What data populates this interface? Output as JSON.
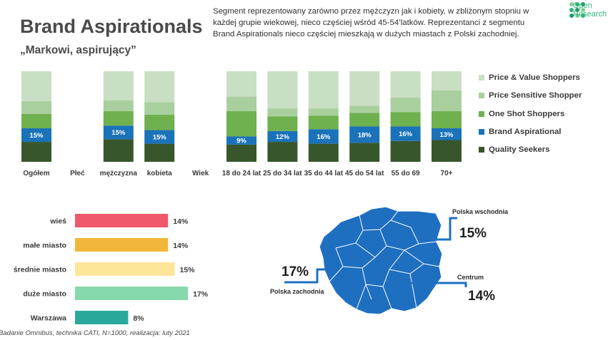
{
  "header": {
    "title": "Brand Aspirationals",
    "subtitle": "„Markowi, aspirujący”",
    "description": "Segment reprezentowany zarówno przez mężczyzn jak i kobiety, w zbliżonym stopniu w każdej grupie wiekowej, nieco częściej wśród 45-54’latków. Reprezentanci z segmentu Brand Aspirationals nieco częściej mieszkają w dużych miastach z Polski zachodniej.",
    "logo_text_1": "Open",
    "logo_text_2": "Research"
  },
  "colors": {
    "price_value": "#c9dfc3",
    "price_sensitive": "#a9cf9e",
    "one_shot": "#6fb04f",
    "brand_aspirational": "#1a72b9",
    "quality_seekers": "#38562c",
    "map_fill": "#1f6fc0",
    "map_connector": "#1f6fc0"
  },
  "legend": [
    {
      "label": "Price & Value Shoppers",
      "color_key": "price_value"
    },
    {
      "label": "Price Sensitive Shopper",
      "color_key": "price_sensitive"
    },
    {
      "label": "One Shot Shoppers",
      "color_key": "one_shot"
    },
    {
      "label": "Brand Aspirational",
      "color_key": "brand_aspirational"
    },
    {
      "label": "Quality Seekers",
      "color_key": "quality_seekers"
    }
  ],
  "chart_data": [
    {
      "type": "bar",
      "stacked": true,
      "title": "",
      "categories": [
        "Ogółem",
        "Płeć",
        "mężczyzna",
        "kobieta",
        "Wiek",
        "18 do 24 lat",
        "25 do 34 lat",
        "35 do 44 lat",
        "45 do 54 lat",
        "55 do 69",
        "70+"
      ],
      "ylim": [
        0,
        100
      ],
      "series": [
        {
          "name": "Quality Seekers",
          "color_key": "quality_seekers",
          "values": [
            22,
            null,
            25,
            20,
            null,
            19,
            22,
            20,
            21,
            23,
            24
          ]
        },
        {
          "name": "Brand Aspirational",
          "color_key": "brand_aspirational",
          "values": [
            15,
            null,
            15,
            15,
            null,
            9,
            12,
            16,
            18,
            16,
            13
          ]
        },
        {
          "name": "One Shot Shoppers",
          "color_key": "one_shot",
          "values": [
            16,
            null,
            16,
            17,
            null,
            28,
            16,
            15,
            15,
            16,
            19
          ]
        },
        {
          "name": "Price Sensitive Shopper",
          "color_key": "price_sensitive",
          "values": [
            14,
            null,
            12,
            14,
            null,
            16,
            9,
            8,
            8,
            16,
            23
          ]
        },
        {
          "name": "Price & Value Shoppers",
          "color_key": "price_value",
          "values": [
            33,
            null,
            32,
            34,
            null,
            28,
            41,
            41,
            38,
            29,
            21
          ]
        }
      ],
      "data_labels_series": "Brand Aspirational",
      "data_labels": [
        "15%",
        "",
        "15%",
        "15%",
        "",
        "9%",
        "12%",
        "16%",
        "18%",
        "16%",
        "13%"
      ]
    },
    {
      "type": "bar",
      "orientation": "horizontal",
      "title": "",
      "categories": [
        "wieś",
        "małe miasto",
        "średnie miasto",
        "duże miasto",
        "Warszawa"
      ],
      "values": [
        14,
        14,
        15,
        17,
        8
      ],
      "value_labels": [
        "14%",
        "14%",
        "15%",
        "17%",
        "8%"
      ],
      "colors": [
        "#f0596b",
        "#f1b63a",
        "#fde59a",
        "#86d8ad",
        "#2aa99a"
      ],
      "xlim": [
        0,
        20
      ]
    }
  ],
  "map": {
    "regions": [
      {
        "name": "Polska wschodnia",
        "value": "15%"
      },
      {
        "name": "Polska zachodnia",
        "value": "17%"
      },
      {
        "name": "Centrum",
        "value": "14%"
      }
    ]
  },
  "footer": {
    "source": "Badanie Omnibus, technika CATI, N=1000, realizacja: luty 2021"
  }
}
